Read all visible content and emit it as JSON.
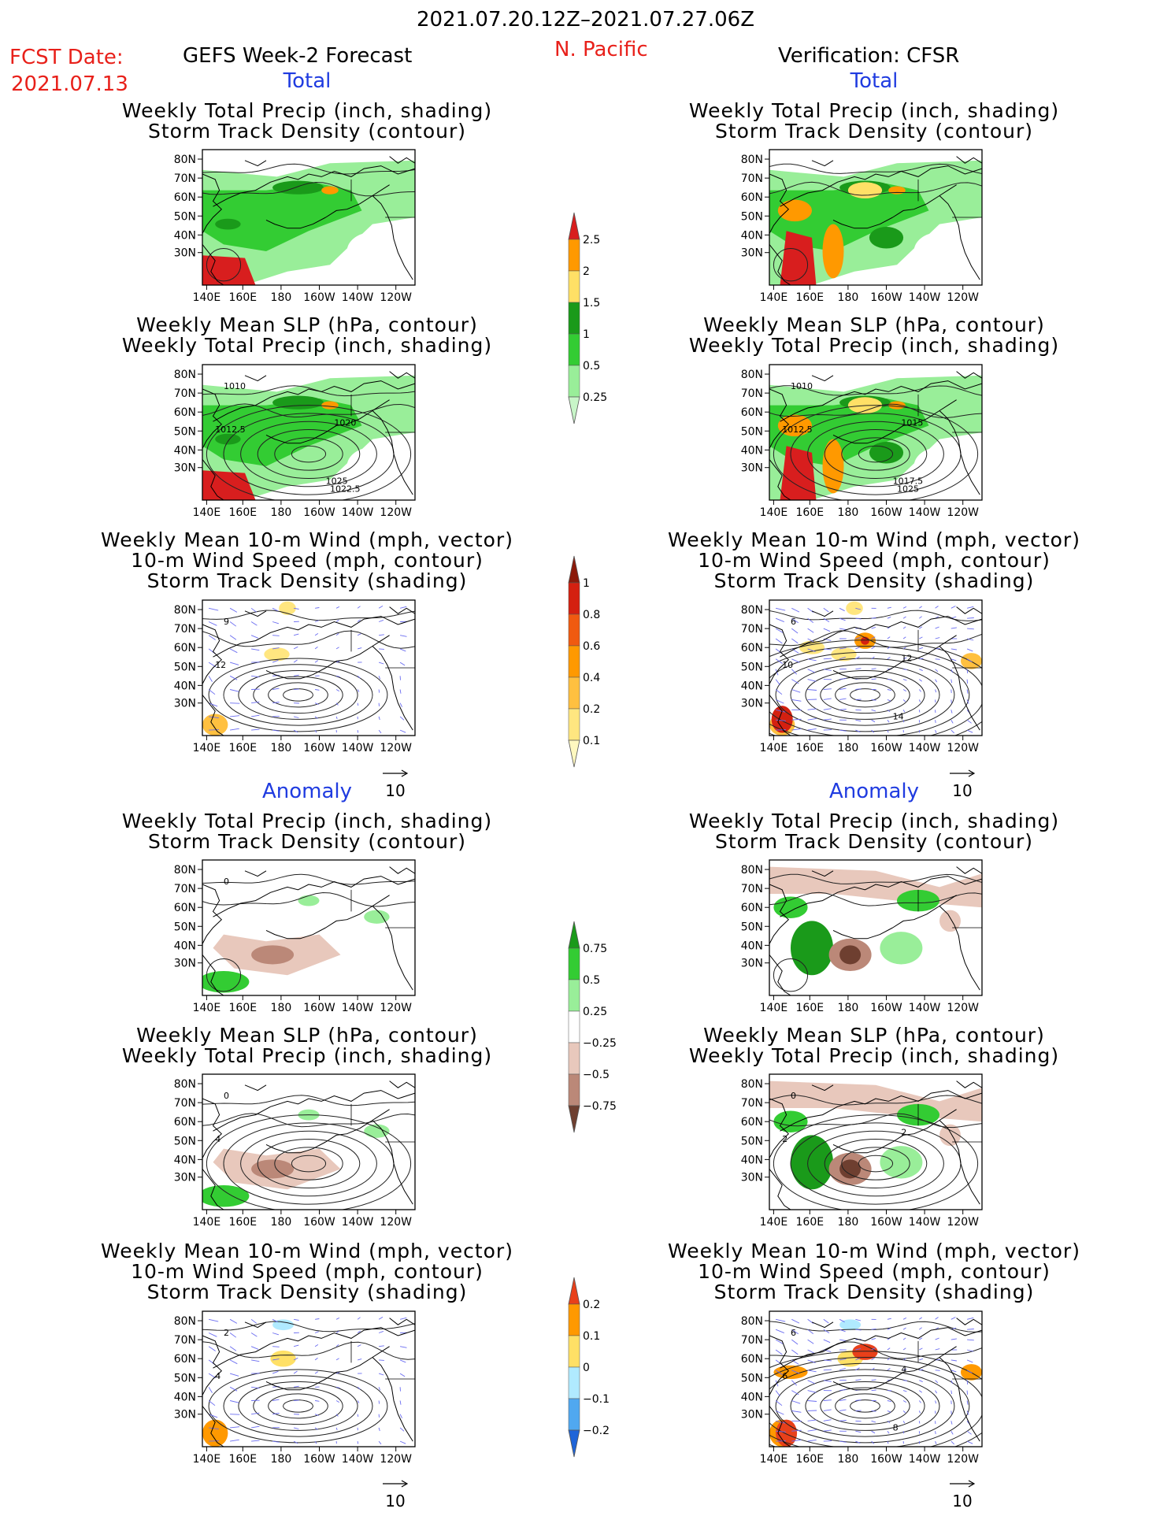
{
  "header": {
    "time_range": "2021.07.20.12Z–2021.07.27.06Z",
    "fcst_label": "FCST Date:",
    "fcst_date": "2021.07.13",
    "left_title": "GEFS Week-2 Forecast",
    "region": "N. Pacific",
    "right_title": "Verification: CFSR",
    "total_label": "Total",
    "anomaly_label": "Anomaly"
  },
  "titles": {
    "precip_track": [
      "Weekly Total Precip (inch, shading)",
      "Storm Track Density (contour)"
    ],
    "slp_precip": [
      "Weekly Mean SLP (hPa, contour)",
      "Weekly Total Precip (inch, shading)"
    ],
    "wind_track": [
      "Weekly Mean 10-m Wind (mph, vector)",
      "10-m Wind Speed (mph, contour)",
      "Storm Track Density (shading)"
    ]
  },
  "axes": {
    "lat_ticks": [
      "80N",
      "70N",
      "60N",
      "50N",
      "40N",
      "30N"
    ],
    "lon_ticks": [
      "140E",
      "160E",
      "180",
      "160W",
      "140W",
      "120W"
    ]
  },
  "vector_scale": "10",
  "colorbars": [
    {
      "id": "precip_total",
      "labels": [
        "2.5",
        "2",
        "1.5",
        "1",
        "0.5",
        "0.25"
      ],
      "colors": [
        "#d81e1e",
        "#ff9900",
        "#ffe066",
        "#1a9a1a",
        "#33cc33",
        "#99ee99",
        "#c8f5c8"
      ]
    },
    {
      "id": "track_total",
      "labels": [
        "1",
        "0.8",
        "0.6",
        "0.4",
        "0.2",
        "0.1"
      ],
      "colors": [
        "#8b1a0a",
        "#d42010",
        "#f05a10",
        "#ff9900",
        "#ffc040",
        "#ffe680",
        "#fff8c0"
      ]
    },
    {
      "id": "precip_anom",
      "labels": [
        "0.75",
        "0.5",
        "0.25",
        "−0.25",
        "−0.5",
        "−0.75"
      ],
      "colors": [
        "#1a9a1a",
        "#33cc33",
        "#99ee99",
        "#ffffff",
        "#e8c8bc",
        "#bb8878",
        "#6e3f30"
      ]
    },
    {
      "id": "track_anom",
      "labels": [
        "0.2",
        "0.1",
        "0",
        "−0.1",
        "−0.2"
      ],
      "colors": [
        "#e8401a",
        "#ff9900",
        "#ffe066",
        "#b0eaff",
        "#50a8f0",
        "#1e64d8"
      ]
    }
  ],
  "panels": [
    {
      "id": "fc-total-precip",
      "kind": "precip",
      "mode": "total",
      "contour_labels": []
    },
    {
      "id": "fc-total-slp",
      "kind": "slp",
      "mode": "total",
      "contour_labels": [
        "1010",
        "1012.5",
        "1020",
        "1025",
        "1022.5"
      ]
    },
    {
      "id": "fc-total-wind",
      "kind": "wind",
      "mode": "total",
      "contour_labels": [
        "9",
        "12"
      ]
    },
    {
      "id": "ver-total-precip",
      "kind": "precip",
      "mode": "total",
      "contour_labels": []
    },
    {
      "id": "ver-total-slp",
      "kind": "slp",
      "mode": "total",
      "contour_labels": [
        "1010",
        "1012.5",
        "1015",
        "1017.5",
        "1025"
      ]
    },
    {
      "id": "ver-total-wind",
      "kind": "wind",
      "mode": "total",
      "contour_labels": [
        "6",
        "10",
        "12",
        "14"
      ]
    },
    {
      "id": "fc-anom-precip",
      "kind": "precip",
      "mode": "anom",
      "contour_labels": [
        "0"
      ]
    },
    {
      "id": "fc-anom-slp",
      "kind": "slp",
      "mode": "anom",
      "contour_labels": [
        "0",
        "4"
      ]
    },
    {
      "id": "fc-anom-wind",
      "kind": "wind",
      "mode": "anom",
      "contour_labels": [
        "2",
        "4"
      ]
    },
    {
      "id": "ver-anom-precip",
      "kind": "precip",
      "mode": "anom",
      "contour_labels": []
    },
    {
      "id": "ver-anom-slp",
      "kind": "slp",
      "mode": "anom",
      "contour_labels": [
        "0",
        "2",
        "2"
      ]
    },
    {
      "id": "ver-anom-wind",
      "kind": "wind",
      "mode": "anom",
      "contour_labels": [
        "6",
        "6",
        "4",
        "8"
      ]
    }
  ]
}
